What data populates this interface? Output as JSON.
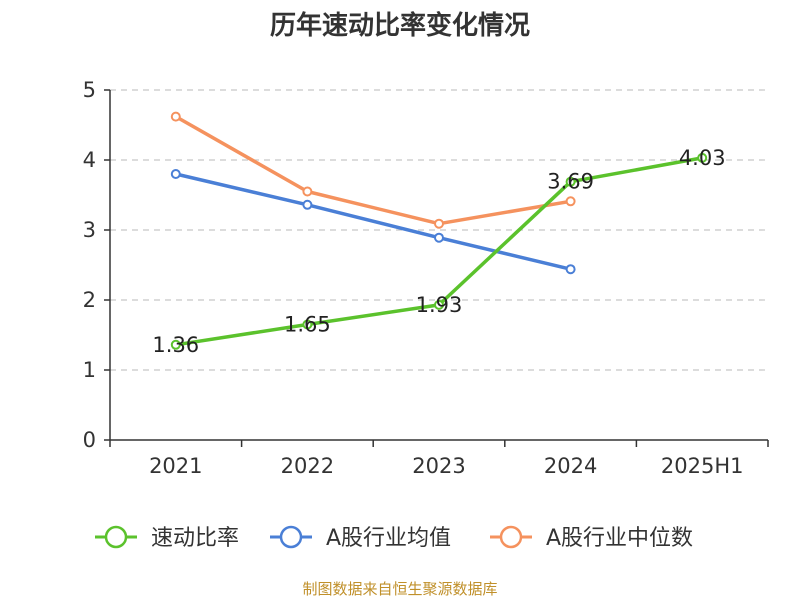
{
  "chart_data": {
    "type": "line",
    "title": "历年速动比率变化情况",
    "categories": [
      "2021",
      "2022",
      "2023",
      "2024",
      "2025H1"
    ],
    "ylim": [
      0,
      5
    ],
    "yticks": [
      "0",
      "1",
      "2",
      "3",
      "4",
      "5"
    ],
    "grid": true,
    "legend_position": "bottom",
    "series": [
      {
        "name": "速动比率",
        "color": "#5bc22c",
        "values": [
          1.36,
          1.65,
          1.93,
          3.69,
          4.03
        ],
        "labels": [
          "1.36",
          "1.65",
          "1.93",
          "3.69",
          "4.03"
        ]
      },
      {
        "name": "A股行业均值",
        "color": "#4a7fd6",
        "values": [
          3.8,
          3.36,
          2.89,
          2.44,
          null
        ]
      },
      {
        "name": "A股行业中位数",
        "color": "#f5925e",
        "values": [
          4.62,
          3.55,
          3.09,
          3.41,
          null
        ]
      }
    ],
    "source": "制图数据来自恒生聚源数据库"
  }
}
